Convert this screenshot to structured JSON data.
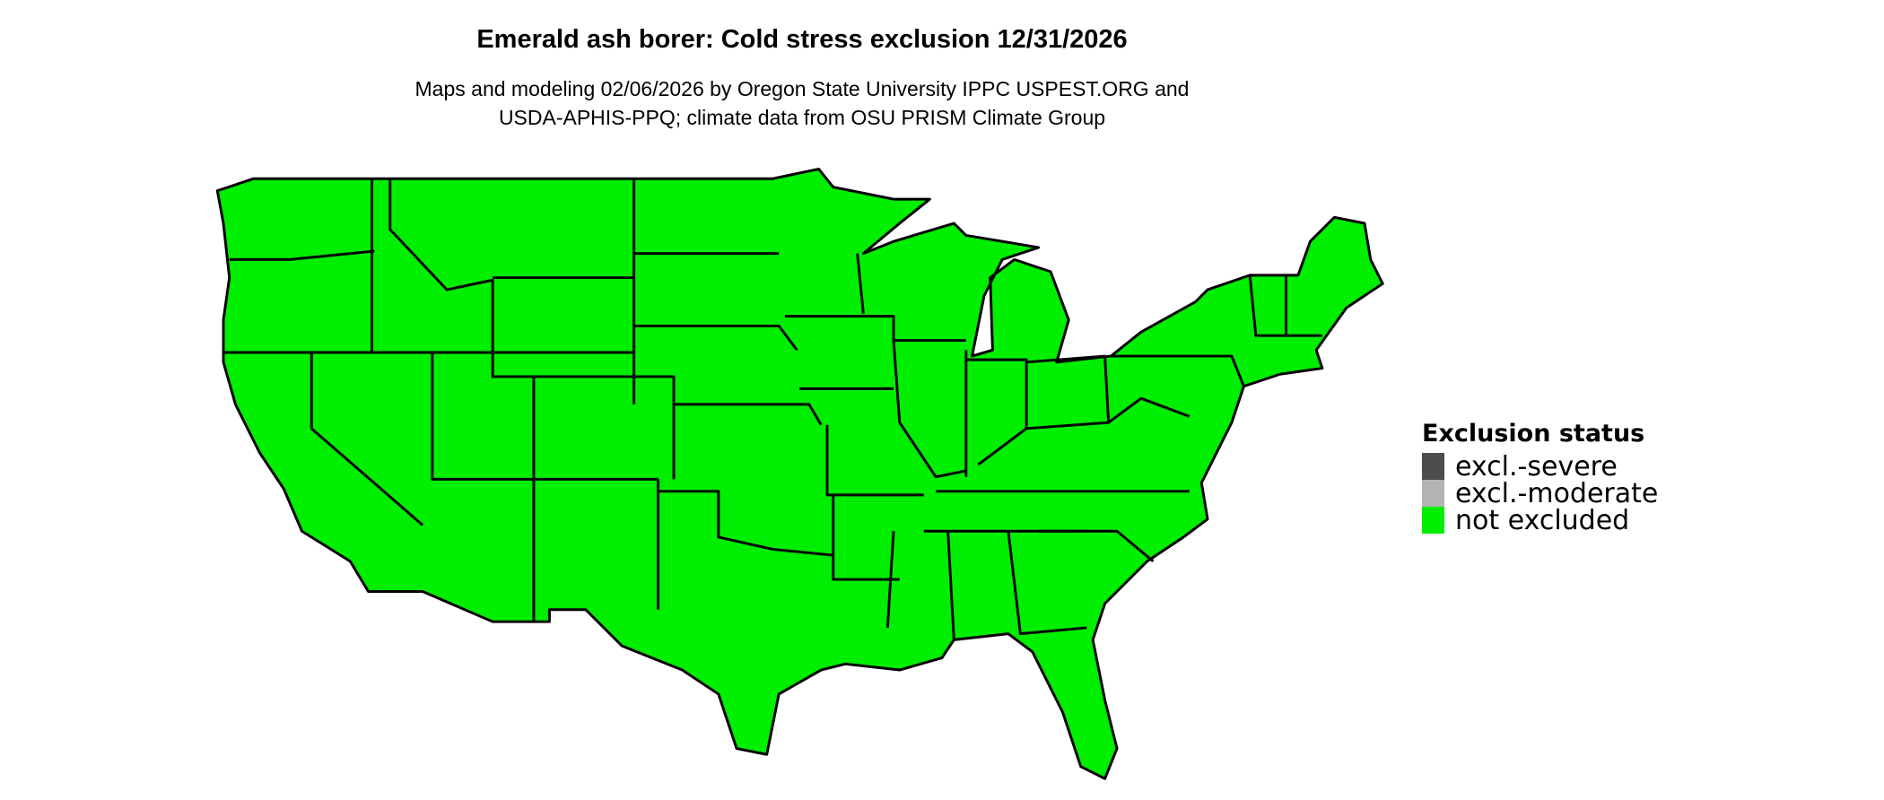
{
  "title": "Emerald ash borer: Cold stress exclusion 12/31/2026",
  "subtitle_line1": "Maps and modeling 02/06/2026 by Oregon State University IPPC USPEST.ORG and",
  "subtitle_line2": "USDA-APHIS-PPQ; climate data from OSU PRISM Climate Group",
  "legend": {
    "title": "Exclusion status",
    "items": [
      {
        "label": "excl.-severe",
        "color": "#4d4d4d"
      },
      {
        "label": "excl.-moderate",
        "color": "#b3b3b3"
      },
      {
        "label": "not excluded",
        "color": "#00ee00"
      }
    ]
  },
  "map": {
    "region": "Contiguous United States",
    "fill_status": "not excluded",
    "fill_color": "#00ee00",
    "border_color": "#000000"
  }
}
